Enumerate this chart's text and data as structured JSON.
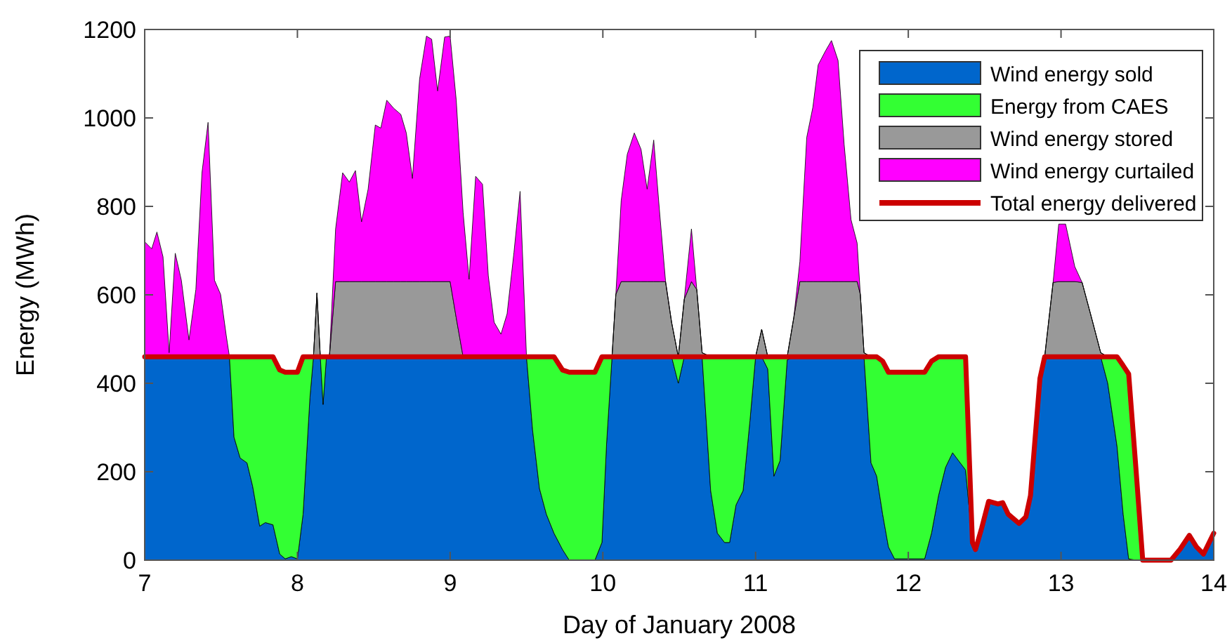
{
  "chart_data": {
    "type": "area",
    "stacked": true,
    "xlabel": "Day of January 2008",
    "ylabel": "Energy (MWh)",
    "xlim": [
      7,
      14
    ],
    "ylim": [
      0,
      1200
    ],
    "xticks": [
      7,
      8,
      9,
      10,
      11,
      12,
      13,
      14
    ],
    "yticks": [
      0,
      200,
      400,
      600,
      800,
      1000,
      1200
    ],
    "grid": false,
    "legend": "top right",
    "x": [
      7.0,
      7.046,
      7.08,
      7.12,
      7.16,
      7.2,
      7.24,
      7.29,
      7.335,
      7.375,
      7.415,
      7.457,
      7.497,
      7.534,
      7.555,
      7.585,
      7.625,
      7.67,
      7.707,
      7.753,
      7.79,
      7.84,
      7.884,
      7.92,
      7.96,
      8.0,
      8.037,
      8.082,
      8.105,
      8.128,
      8.15,
      8.168,
      8.19,
      8.21,
      8.25,
      8.296,
      8.34,
      8.38,
      8.42,
      8.463,
      8.51,
      8.546,
      8.585,
      8.63,
      8.677,
      8.713,
      8.753,
      8.8,
      8.845,
      8.879,
      8.918,
      8.964,
      9.0,
      9.04,
      9.085,
      9.124,
      9.167,
      9.212,
      9.25,
      9.288,
      9.333,
      9.373,
      9.418,
      9.458,
      9.5,
      9.54,
      9.585,
      9.63,
      9.68,
      9.736,
      9.78,
      9.948,
      9.994,
      10.024,
      10.06,
      10.085,
      10.12,
      10.16,
      10.206,
      10.25,
      10.29,
      10.333,
      10.373,
      10.41,
      10.45,
      10.494,
      10.533,
      10.58,
      10.615,
      10.65,
      10.706,
      10.75,
      10.797,
      10.83,
      10.872,
      10.918,
      10.963,
      11.0,
      11.04,
      11.08,
      11.12,
      11.16,
      11.207,
      11.25,
      11.29,
      11.335,
      11.375,
      11.41,
      11.457,
      11.497,
      11.54,
      11.58,
      11.625,
      11.665,
      11.686,
      11.71,
      11.756,
      11.793,
      11.832,
      11.87,
      11.91,
      12.107,
      12.152,
      12.198,
      12.244,
      12.29,
      12.375,
      12.42,
      12.44,
      12.48,
      12.526,
      12.587,
      12.618,
      12.654,
      12.725,
      12.77,
      12.8,
      12.862,
      12.893,
      12.948,
      12.985,
      13.03,
      13.09,
      13.138,
      13.2,
      13.26,
      13.306,
      13.367,
      13.407,
      13.443,
      13.49,
      13.535,
      13.72,
      13.78,
      13.84,
      13.887,
      13.933,
      14.0
    ],
    "series": [
      {
        "name": "Wind energy sold",
        "color": "#0066cc",
        "values": [
          460,
          460,
          460,
          460,
          460,
          460,
          460,
          460,
          460,
          460,
          460,
          460,
          460,
          460,
          460,
          278,
          231,
          220,
          167,
          77,
          85,
          80,
          14,
          3,
          8,
          3,
          104,
          368,
          460,
          460,
          460,
          352,
          460,
          460,
          460,
          460,
          460,
          460,
          460,
          460,
          460,
          460,
          460,
          460,
          460,
          460,
          460,
          460,
          460,
          460,
          460,
          460,
          460,
          460,
          460,
          460,
          460,
          460,
          460,
          460,
          460,
          460,
          460,
          460,
          460,
          294,
          162,
          104,
          61,
          24,
          0,
          0,
          40,
          262,
          460,
          460,
          460,
          460,
          460,
          460,
          460,
          460,
          460,
          460,
          460,
          400,
          460,
          460,
          460,
          460,
          157,
          61,
          40,
          40,
          125,
          157,
          315,
          460,
          460,
          432,
          190,
          225,
          453,
          460,
          460,
          460,
          460,
          460,
          460,
          460,
          460,
          460,
          460,
          460,
          460,
          460,
          220,
          190,
          104,
          30,
          3,
          3,
          61,
          146,
          210,
          243,
          204,
          40,
          24,
          72,
          133,
          127,
          130,
          104,
          83,
          98,
          146,
          411,
          460,
          460,
          460,
          460,
          460,
          460,
          460,
          460,
          400,
          257,
          104,
          3,
          0,
          null,
          0,
          25,
          56,
          30,
          14,
          61
        ]
      },
      {
        "name": "Energy from CAES",
        "color": "#33ff33",
        "values": [
          0,
          0,
          0,
          0,
          0,
          0,
          0,
          0,
          0,
          0,
          0,
          0,
          0,
          0,
          0,
          182,
          229,
          240,
          293,
          383,
          375,
          380,
          416,
          422,
          417,
          422,
          356,
          92,
          0,
          0,
          0,
          108,
          0,
          0,
          0,
          0,
          0,
          0,
          0,
          0,
          0,
          0,
          0,
          0,
          0,
          0,
          0,
          0,
          0,
          0,
          0,
          0,
          0,
          0,
          0,
          0,
          0,
          0,
          0,
          0,
          0,
          0,
          0,
          0,
          0,
          166,
          298,
          356,
          399,
          406,
          425,
          425,
          420,
          198,
          0,
          0,
          0,
          0,
          0,
          0,
          0,
          0,
          0,
          0,
          0,
          60,
          0,
          0,
          0,
          0,
          303,
          399,
          420,
          420,
          335,
          303,
          145,
          0,
          0,
          28,
          270,
          235,
          7,
          0,
          0,
          0,
          0,
          0,
          0,
          0,
          0,
          0,
          0,
          0,
          0,
          0,
          240,
          270,
          346,
          395,
          422,
          422,
          389,
          314,
          250,
          217,
          256,
          0,
          0,
          0,
          0,
          0,
          0,
          0,
          0,
          0,
          0,
          0,
          0,
          0,
          0,
          0,
          0,
          0,
          0,
          0,
          60,
          203,
          336,
          418,
          210,
          0,
          null,
          null,
          null,
          null,
          null,
          null
        ]
      },
      {
        "name": "Wind energy stored",
        "color": "#999999",
        "values": [
          0,
          0,
          0,
          0,
          0,
          0,
          0,
          0,
          0,
          0,
          0,
          0,
          0,
          0,
          0,
          0,
          0,
          0,
          0,
          0,
          0,
          0,
          0,
          0,
          0,
          0,
          0,
          0,
          0,
          144,
          0,
          0,
          0,
          3,
          170,
          170,
          170,
          170,
          170,
          170,
          170,
          170,
          170,
          170,
          170,
          170,
          170,
          170,
          170,
          170,
          170,
          170,
          170,
          88,
          0,
          0,
          0,
          0,
          0,
          0,
          0,
          0,
          0,
          0,
          0,
          0,
          0,
          0,
          0,
          0,
          0,
          0,
          0,
          0,
          0,
          141,
          170,
          170,
          170,
          170,
          170,
          170,
          170,
          170,
          78,
          0,
          130,
          170,
          152,
          9,
          0,
          0,
          0,
          0,
          0,
          0,
          0,
          0,
          62,
          0,
          0,
          0,
          0,
          88,
          170,
          170,
          170,
          170,
          170,
          170,
          170,
          170,
          170,
          170,
          141,
          9,
          0,
          0,
          0,
          0,
          0,
          0,
          0,
          0,
          0,
          0,
          0,
          0,
          0,
          0,
          0,
          0,
          0,
          0,
          0,
          0,
          0,
          0,
          0,
          168,
          170,
          170,
          170,
          168,
          88,
          9,
          0,
          0,
          0,
          0,
          0,
          0,
          0,
          0,
          0,
          0,
          0,
          0
        ]
      },
      {
        "name": "Wind energy curtailed",
        "color": "#ff00ff",
        "values": [
          260,
          244,
          282,
          226,
          9,
          234,
          173,
          38,
          152,
          416,
          530,
          173,
          141,
          48,
          0,
          0,
          0,
          0,
          0,
          0,
          0,
          0,
          0,
          0,
          0,
          0,
          0,
          0,
          0,
          0,
          0,
          0,
          0,
          0,
          119,
          246,
          225,
          251,
          135,
          209,
          354,
          347,
          410,
          392,
          378,
          336,
          233,
          458,
          555,
          548,
          431,
          553,
          555,
          492,
          326,
          175,
          408,
          390,
          183,
          78,
          51,
          97,
          236,
          374,
          0,
          0,
          0,
          0,
          0,
          0,
          0,
          0,
          0,
          0,
          0,
          0,
          183,
          288,
          336,
          299,
          209,
          320,
          151,
          3,
          0,
          0,
          0,
          119,
          0,
          0,
          0,
          0,
          0,
          0,
          0,
          0,
          0,
          0,
          0,
          0,
          0,
          0,
          0,
          0,
          45,
          326,
          394,
          490,
          521,
          545,
          500,
          310,
          140,
          87,
          0,
          0,
          0,
          0,
          0,
          0,
          0,
          0,
          0,
          0,
          0,
          0,
          0,
          0,
          0,
          0,
          0,
          0,
          0,
          0,
          0,
          0,
          0,
          0,
          0,
          0,
          130,
          130,
          34,
          0,
          0,
          0,
          0,
          0,
          0,
          0,
          0,
          0,
          0,
          0,
          0,
          0,
          0,
          0
        ]
      },
      {
        "name": "Total energy delivered",
        "type": "line",
        "color": "#cc0000",
        "values": [
          460,
          460,
          460,
          460,
          460,
          460,
          460,
          460,
          460,
          460,
          460,
          460,
          460,
          460,
          460,
          460,
          460,
          460,
          460,
          460,
          460,
          460,
          430,
          425,
          425,
          425,
          460,
          460,
          460,
          460,
          460,
          460,
          460,
          460,
          460,
          460,
          460,
          460,
          460,
          460,
          460,
          460,
          460,
          460,
          460,
          460,
          460,
          460,
          460,
          460,
          460,
          460,
          460,
          460,
          460,
          460,
          460,
          460,
          460,
          460,
          460,
          460,
          460,
          460,
          460,
          460,
          460,
          460,
          460,
          430,
          425,
          425,
          460,
          460,
          460,
          460,
          460,
          460,
          460,
          460,
          460,
          460,
          460,
          460,
          460,
          460,
          460,
          460,
          460,
          460,
          460,
          460,
          460,
          460,
          460,
          460,
          460,
          460,
          460,
          460,
          460,
          460,
          460,
          460,
          460,
          460,
          460,
          460,
          460,
          460,
          460,
          460,
          460,
          460,
          460,
          460,
          460,
          460,
          450,
          425,
          425,
          425,
          450,
          460,
          460,
          460,
          460,
          40,
          24,
          72,
          133,
          127,
          130,
          104,
          83,
          98,
          146,
          411,
          460,
          460,
          460,
          460,
          460,
          460,
          460,
          460,
          460,
          460,
          440,
          421,
          210,
          0,
          0,
          25,
          56,
          30,
          14,
          61
        ]
      }
    ]
  }
}
